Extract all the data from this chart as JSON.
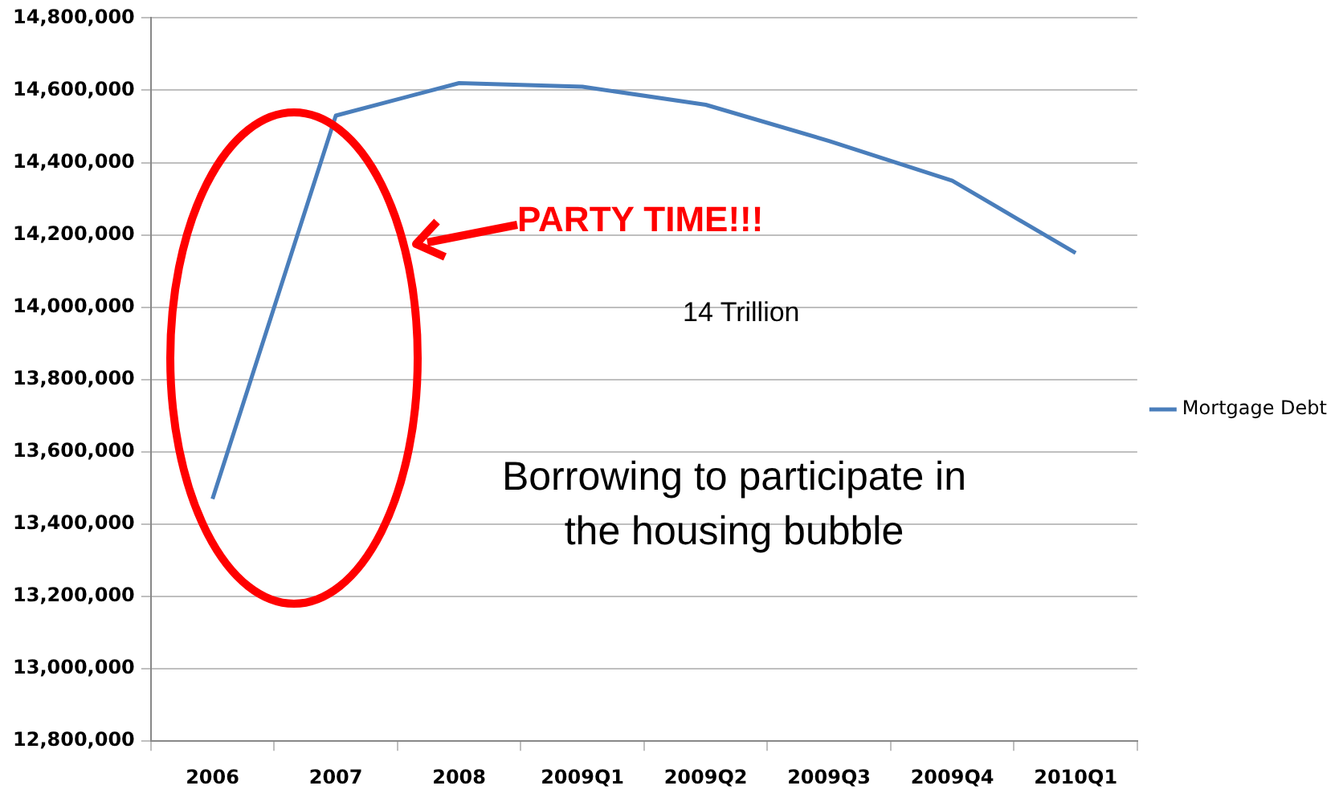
{
  "chart_data": {
    "type": "line",
    "categories": [
      "2006",
      "2007",
      "2008",
      "2009Q1",
      "2009Q2",
      "2009Q3",
      "2009Q4",
      "2010Q1"
    ],
    "series": [
      {
        "name": "Mortgage Debt",
        "color": "#4a7ebb",
        "values": [
          13470000,
          14530000,
          14620000,
          14610000,
          14560000,
          14460000,
          14350000,
          14150000
        ]
      }
    ],
    "ylim": [
      12800000,
      14800000
    ],
    "yticks": [
      {
        "value": 12800000,
        "label": "12,800,000"
      },
      {
        "value": 13000000,
        "label": "13,000,000"
      },
      {
        "value": 13200000,
        "label": "13,200,000"
      },
      {
        "value": 13400000,
        "label": "13,400,000"
      },
      {
        "value": 13600000,
        "label": "13,600,000"
      },
      {
        "value": 13800000,
        "label": "13,800,000"
      },
      {
        "value": 14000000,
        "label": "14,000,000"
      },
      {
        "value": 14200000,
        "label": "14,200,000"
      },
      {
        "value": 14400000,
        "label": "14,400,000"
      },
      {
        "value": 14600000,
        "label": "14,600,000"
      },
      {
        "value": 14800000,
        "label": "14,800,000"
      }
    ],
    "grid": "y",
    "legend": "right",
    "marker": "none",
    "annotations": [
      "PARTY TIME!!!",
      "14 Trillion",
      "Borrowing to participate in the housing bubble"
    ]
  }
}
